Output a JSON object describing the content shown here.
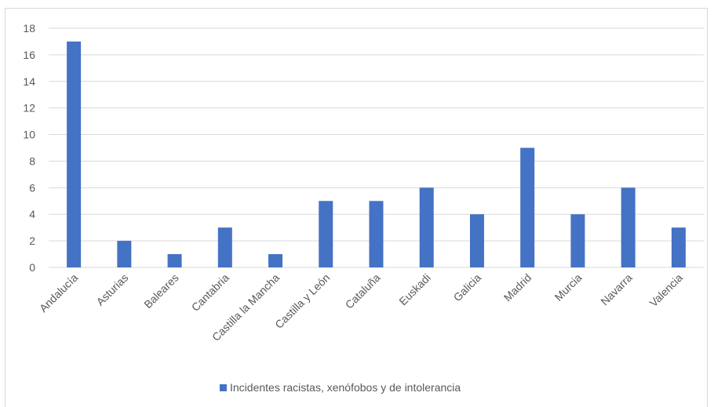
{
  "chart_data": {
    "type": "bar",
    "categories": [
      "Andalucía",
      "Asturias",
      "Baleares",
      "Cantabria",
      "Castilla la Mancha",
      "Castilla y León",
      "Cataluña",
      "Euskadi",
      "Galicia",
      "Madrid",
      "Murcia",
      "Navarra",
      "Valencia"
    ],
    "series": [
      {
        "name": "Incidentes racistas, xenófobos y de intolerancia",
        "values": [
          17,
          2,
          1,
          3,
          1,
          5,
          5,
          6,
          4,
          9,
          4,
          6,
          3
        ],
        "color": "#4472c4"
      }
    ],
    "yticks": [
      "0",
      "2",
      "4",
      "6",
      "8",
      "10",
      "12",
      "14",
      "16",
      "18"
    ],
    "ylim": [
      0,
      18
    ],
    "grid": true,
    "legend_position": "bottom",
    "gridline_color": "#d9d9d9",
    "text_color": "#595959"
  }
}
